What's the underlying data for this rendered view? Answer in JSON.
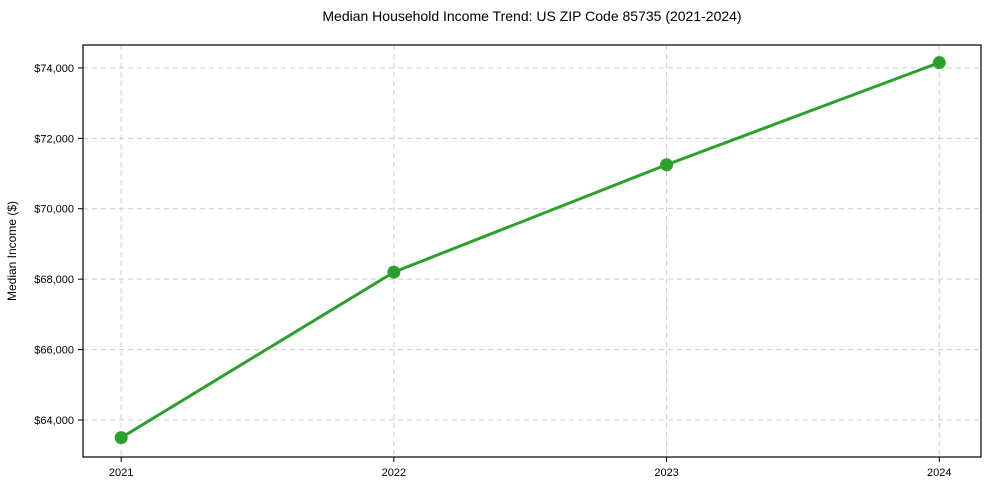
{
  "chart_data": {
    "type": "line",
    "title": "Median Household Income Trend: US ZIP Code 85735 (2021-2024)",
    "xlabel": "",
    "ylabel": "Median Income ($)",
    "x": [
      2021,
      2022,
      2023,
      2024
    ],
    "x_tick_labels": [
      "2021",
      "2022",
      "2023",
      "2024"
    ],
    "values": [
      63500,
      68200,
      71250,
      74150
    ],
    "y_tick_values": [
      64000,
      66000,
      68000,
      70000,
      72000,
      74000
    ],
    "y_tick_labels": [
      "$64,000",
      "$66,000",
      "$68,000",
      "$70,000",
      "$72,000",
      "$74,000"
    ],
    "xlim": [
      2020.86,
      2024.153
    ],
    "ylim": [
      62950,
      74650
    ],
    "grid": true,
    "grid_style": "dashed",
    "legend_position": "none",
    "colors": {
      "line": "#2ca02c",
      "marker": "#2ca02c",
      "grid": "#cccccc",
      "axis_border": "#000000",
      "background": "#ffffff",
      "text": "#000000"
    }
  }
}
